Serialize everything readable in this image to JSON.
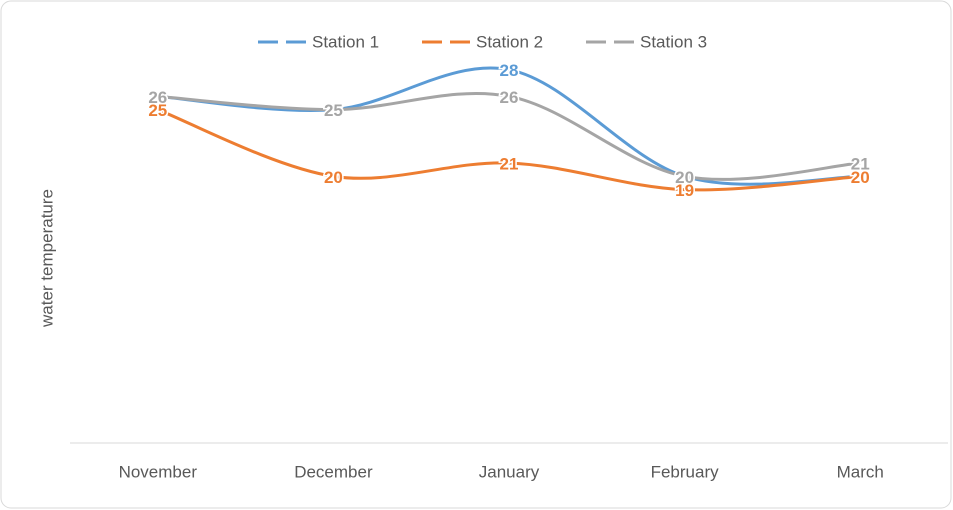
{
  "chart_data": {
    "type": "line",
    "y_label": "water temperature",
    "categories": [
      "November",
      "December",
      "January",
      "February",
      "March"
    ],
    "series": [
      {
        "name": "Station 1",
        "color": "#5b9bd5",
        "values": [
          26,
          25,
          28,
          20,
          20
        ]
      },
      {
        "name": "Station 2",
        "color": "#ed7d31",
        "values": [
          25,
          20,
          21,
          19,
          20
        ]
      },
      {
        "name": "Station 3",
        "color": "#a5a5a5",
        "values": [
          26,
          25,
          26,
          20,
          21
        ]
      }
    ],
    "ylim": [
      0,
      30
    ],
    "smooth": true,
    "legend": "top"
  }
}
